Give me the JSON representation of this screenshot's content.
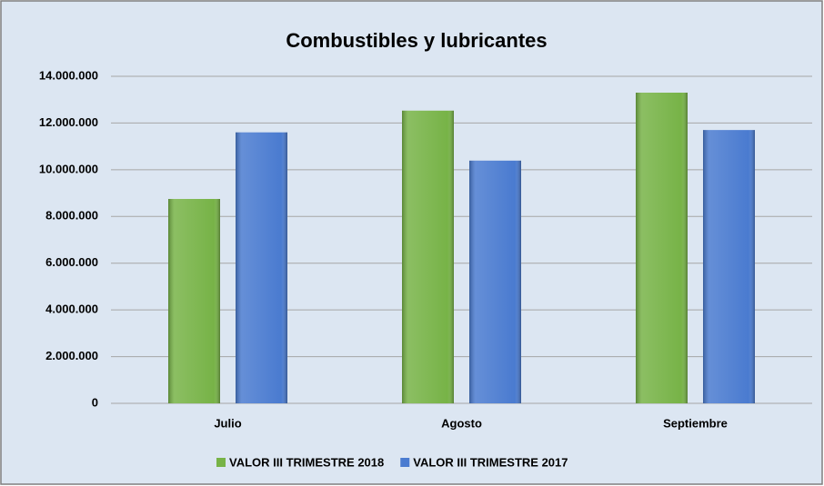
{
  "chart_data": {
    "type": "bar",
    "title": "Combustibles y lubricantes",
    "categories": [
      "Julio",
      "Agosto",
      "Septiembre"
    ],
    "series": [
      {
        "name": "VALOR III TRIMESTRE 2018",
        "color": "#77b347",
        "values": [
          8750000,
          12530000,
          13300000
        ]
      },
      {
        "name": "VALOR III TRIMESTRE 2017",
        "color": "#4a7bd0",
        "values": [
          11600000,
          10390000,
          11700000
        ]
      }
    ],
    "ylim": [
      0,
      14000000
    ],
    "yticks": [
      0,
      {
        "value": 2000000,
        "label": "2.000.000"
      },
      {
        "value": 4000000,
        "label": "4.000.000"
      },
      {
        "value": 6000000,
        "label": "6.000.000"
      },
      {
        "value": 8000000,
        "label": "8.000.000"
      },
      {
        "value": 10000000,
        "label": "10.000.000"
      },
      {
        "value": 12000000,
        "label": "12.000.000"
      },
      {
        "value": 14000000,
        "label": "14.000.000"
      }
    ],
    "grid": true,
    "legend": "bottom"
  }
}
